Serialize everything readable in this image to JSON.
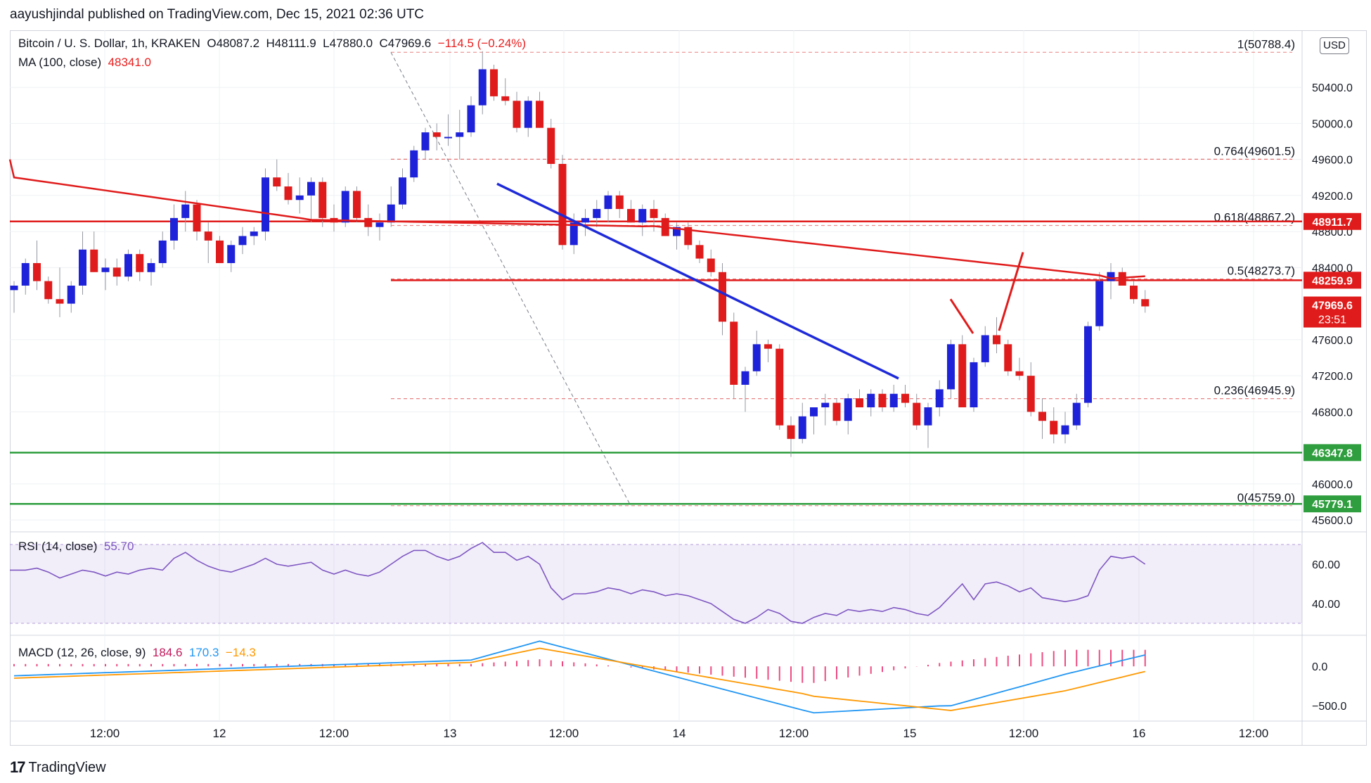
{
  "caption": {
    "user": "aayushjindal",
    "text": "published on TradingView.com, Dec 15, 2021 02:36 UTC"
  },
  "legend": {
    "symbol": "Bitcoin / U. S. Dollar, 1h, KRAKEN",
    "o": "O48087.2",
    "h": "H48111.9",
    "l": "L47880.0",
    "c": "C47969.6",
    "change": "−114.5 (−0.24%)",
    "ma_label": "MA (100, close)",
    "ma_value": "48341.0",
    "rsi_label": "RSI (14, close)",
    "rsi_value": "55.70",
    "macd_label": "MACD (12, 26, close, 9)",
    "macd_hist": "184.6",
    "macd_line": "170.3",
    "macd_signal": "−14.3"
  },
  "currency": "USD",
  "brand": "TradingView",
  "colors": {
    "up": "#1e22d8",
    "down": "#e01b1b",
    "ma": "#e01b1b",
    "trendline": "#1e2ad8",
    "resistance": "#e01b1b",
    "support": "#2e9e3e",
    "fib": "#e57373",
    "rsi": "#7e57c2",
    "macd": "#2196f3",
    "signal": "#ff9800",
    "hist": "#e91e63"
  },
  "chart_data": {
    "type": "candlestick",
    "price_ticks": [
      "50400.0",
      "50000.0",
      "49600.0",
      "49200.0",
      "48800.0",
      "48400.0",
      "47600.0",
      "47200.0",
      "46800.0",
      "46000.0",
      "45600.0"
    ],
    "time_ticks": [
      "12:00",
      "12",
      "12:00",
      "13",
      "12:00",
      "14",
      "12:00",
      "15",
      "12:00",
      "16",
      "12:00"
    ],
    "rsi_ticks": [
      "60.00",
      "40.00"
    ],
    "macd_ticks": [
      "0.0",
      "−500.0"
    ],
    "price_range": [
      45500,
      50900
    ],
    "fib_levels": [
      {
        "label": "1(50788.4)",
        "price": 50788.4
      },
      {
        "label": "0.764(49601.5)",
        "price": 49601.5
      },
      {
        "label": "0.618(48867.2)",
        "price": 48867.2
      },
      {
        "label": "0.5(48273.7)",
        "price": 48273.7
      },
      {
        "label": "0.236(46945.9)",
        "price": 46945.9
      },
      {
        "label": "0(45759.0)",
        "price": 45759.0
      }
    ],
    "horizontal_levels": [
      {
        "label": "48911.7",
        "price": 48911.7,
        "kind": "resistance"
      },
      {
        "label": "48259.9",
        "price": 48259.9,
        "kind": "resistance"
      },
      {
        "label": "46347.8",
        "price": 46347.8,
        "kind": "support"
      },
      {
        "label": "45779.1",
        "price": 45779.1,
        "kind": "support"
      }
    ],
    "last_price": {
      "label": "47969.6",
      "countdown": "23:51",
      "price": 47969.6
    },
    "candles": [
      [
        48150,
        48250,
        47900,
        48200
      ],
      [
        48200,
        48500,
        48100,
        48450
      ],
      [
        48450,
        48700,
        48150,
        48250
      ],
      [
        48250,
        48300,
        48000,
        48050
      ],
      [
        48050,
        48400,
        47850,
        48000
      ],
      [
        48000,
        48250,
        47900,
        48200
      ],
      [
        48200,
        48800,
        48100,
        48600
      ],
      [
        48600,
        48800,
        48350,
        48350
      ],
      [
        48350,
        48500,
        48150,
        48400
      ],
      [
        48400,
        48500,
        48200,
        48300
      ],
      [
        48300,
        48600,
        48250,
        48550
      ],
      [
        48550,
        48600,
        48250,
        48350
      ],
      [
        48350,
        48500,
        48200,
        48450
      ],
      [
        48450,
        48800,
        48400,
        48700
      ],
      [
        48700,
        49100,
        48600,
        48950
      ],
      [
        48950,
        49250,
        48800,
        49100
      ],
      [
        49100,
        49150,
        48700,
        48800
      ],
      [
        48800,
        48900,
        48450,
        48700
      ],
      [
        48700,
        48750,
        48450,
        48450
      ],
      [
        48450,
        48700,
        48350,
        48650
      ],
      [
        48650,
        48850,
        48550,
        48750
      ],
      [
        48750,
        48850,
        48650,
        48800
      ],
      [
        48800,
        49500,
        48700,
        49400
      ],
      [
        49400,
        49600,
        49250,
        49300
      ],
      [
        49300,
        49450,
        49100,
        49150
      ],
      [
        49150,
        49400,
        49000,
        49200
      ],
      [
        49200,
        49400,
        48900,
        49350
      ],
      [
        49350,
        49400,
        48850,
        48950
      ],
      [
        48950,
        49100,
        48800,
        48900
      ],
      [
        48900,
        49300,
        48850,
        49250
      ],
      [
        49250,
        49300,
        48900,
        48950
      ],
      [
        48950,
        49100,
        48750,
        48850
      ],
      [
        48850,
        49000,
        48700,
        48900
      ],
      [
        48900,
        49300,
        48850,
        49100
      ],
      [
        49100,
        49500,
        49050,
        49400
      ],
      [
        49400,
        49750,
        49350,
        49700
      ],
      [
        49700,
        49950,
        49600,
        49900
      ],
      [
        49900,
        50000,
        49700,
        49850
      ],
      [
        49850,
        50100,
        49750,
        49850
      ],
      [
        49850,
        50150,
        49600,
        49900
      ],
      [
        49900,
        50300,
        49850,
        50200
      ],
      [
        50200,
        50800,
        50100,
        50600
      ],
      [
        50600,
        50650,
        50250,
        50300
      ],
      [
        50300,
        50500,
        50200,
        50250
      ],
      [
        50250,
        50350,
        49900,
        49950
      ],
      [
        49950,
        50300,
        49850,
        50250
      ],
      [
        50250,
        50350,
        49950,
        49950
      ],
      [
        49950,
        50050,
        49500,
        49550
      ],
      [
        49550,
        49650,
        48600,
        48650
      ],
      [
        48650,
        49000,
        48550,
        48900
      ],
      [
        48900,
        49050,
        48750,
        48950
      ],
      [
        48950,
        49150,
        48850,
        49050
      ],
      [
        49050,
        49250,
        48900,
        49200
      ],
      [
        49200,
        49250,
        48950,
        49050
      ],
      [
        49050,
        49150,
        48900,
        48900
      ],
      [
        48900,
        49100,
        48750,
        49050
      ],
      [
        49050,
        49150,
        48800,
        48950
      ],
      [
        48950,
        49000,
        48750,
        48750
      ],
      [
        48750,
        48900,
        48600,
        48850
      ],
      [
        48850,
        48900,
        48600,
        48650
      ],
      [
        48650,
        48700,
        48450,
        48500
      ],
      [
        48500,
        48600,
        48300,
        48350
      ],
      [
        48350,
        48450,
        47650,
        47800
      ],
      [
        47800,
        47900,
        46950,
        47100
      ],
      [
        47100,
        47300,
        46800,
        47250
      ],
      [
        47250,
        47700,
        47200,
        47550
      ],
      [
        47550,
        47600,
        47350,
        47500
      ],
      [
        47500,
        47550,
        46600,
        46650
      ],
      [
        46650,
        46750,
        46300,
        46500
      ],
      [
        46500,
        46900,
        46450,
        46750
      ],
      [
        46750,
        46850,
        46550,
        46850
      ],
      [
        46850,
        47000,
        46650,
        46900
      ],
      [
        46900,
        46950,
        46650,
        46700
      ],
      [
        46700,
        47000,
        46550,
        46950
      ],
      [
        46950,
        47050,
        46850,
        46850
      ],
      [
        46850,
        47050,
        46750,
        47000
      ],
      [
        47000,
        47050,
        46800,
        46850
      ],
      [
        46850,
        47100,
        46800,
        47000
      ],
      [
        47000,
        47100,
        46850,
        46900
      ],
      [
        46900,
        47000,
        46600,
        46650
      ],
      [
        46650,
        46900,
        46400,
        46850
      ],
      [
        46850,
        47150,
        46750,
        47050
      ],
      [
        47050,
        47600,
        46950,
        47550
      ],
      [
        47550,
        47650,
        46850,
        46850
      ],
      [
        46850,
        47400,
        46800,
        47350
      ],
      [
        47350,
        47750,
        47300,
        47650
      ],
      [
        47650,
        47850,
        47450,
        47550
      ],
      [
        47550,
        47600,
        47200,
        47250
      ],
      [
        47250,
        47400,
        47150,
        47200
      ],
      [
        47200,
        47350,
        46750,
        46800
      ],
      [
        46800,
        46950,
        46500,
        46700
      ],
      [
        46700,
        46850,
        46450,
        46550
      ],
      [
        46550,
        46800,
        46450,
        46650
      ],
      [
        46650,
        47000,
        46600,
        46900
      ],
      [
        46900,
        47800,
        46850,
        47750
      ],
      [
        47750,
        48350,
        47700,
        48250
      ],
      [
        48250,
        48450,
        48050,
        48350
      ],
      [
        48350,
        48400,
        48200,
        48200
      ],
      [
        48200,
        48250,
        48000,
        48050
      ],
      [
        48050,
        48150,
        47900,
        47970
      ]
    ]
  }
}
